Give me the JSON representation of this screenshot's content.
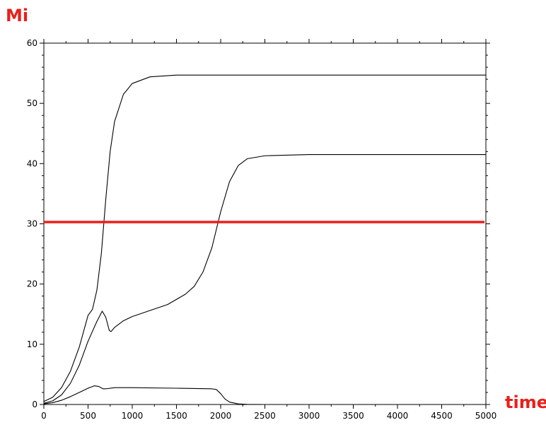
{
  "chart_data": {
    "type": "line",
    "title": "",
    "xlabel": "time",
    "ylabel": "Mi",
    "xlim": [
      0,
      5000
    ],
    "ylim": [
      0,
      60
    ],
    "x_ticks": [
      0,
      500,
      1000,
      1500,
      2000,
      2500,
      3000,
      3500,
      4000,
      4500,
      5000
    ],
    "y_ticks": [
      0,
      10,
      20,
      30,
      40,
      50,
      60
    ],
    "grid": false,
    "legend": "none",
    "threshold": {
      "y": 30.3,
      "color": "#e8201b"
    },
    "series": [
      {
        "color": "#000000",
        "points": [
          [
            0,
            0.5
          ],
          [
            100,
            1.2
          ],
          [
            200,
            2.8
          ],
          [
            300,
            5.5
          ],
          [
            400,
            9.5
          ],
          [
            500,
            14.8
          ],
          [
            550,
            15.8
          ],
          [
            600,
            19
          ],
          [
            650,
            25
          ],
          [
            700,
            34
          ],
          [
            750,
            42
          ],
          [
            800,
            47
          ],
          [
            900,
            51.5
          ],
          [
            1000,
            53.3
          ],
          [
            1200,
            54.4
          ],
          [
            1500,
            54.7
          ],
          [
            2000,
            54.7
          ],
          [
            5000,
            54.7
          ]
        ]
      },
      {
        "color": "#000000",
        "points": [
          [
            0,
            0.2
          ],
          [
            100,
            0.6
          ],
          [
            200,
            1.6
          ],
          [
            300,
            3.5
          ],
          [
            400,
            6.5
          ],
          [
            500,
            10.5
          ],
          [
            600,
            13.8
          ],
          [
            660,
            15.5
          ],
          [
            700,
            14.5
          ],
          [
            740,
            12.3
          ],
          [
            760,
            12.1
          ],
          [
            800,
            12.8
          ],
          [
            900,
            13.9
          ],
          [
            1000,
            14.6
          ],
          [
            1200,
            15.6
          ],
          [
            1400,
            16.6
          ],
          [
            1600,
            18.3
          ],
          [
            1700,
            19.6
          ],
          [
            1800,
            22
          ],
          [
            1900,
            26
          ],
          [
            2000,
            32
          ],
          [
            2100,
            37
          ],
          [
            2200,
            39.7
          ],
          [
            2300,
            40.8
          ],
          [
            2500,
            41.3
          ],
          [
            3000,
            41.5
          ],
          [
            5000,
            41.5
          ]
        ]
      },
      {
        "color": "#000000",
        "points": [
          [
            0,
            0.1
          ],
          [
            100,
            0.3
          ],
          [
            200,
            0.7
          ],
          [
            300,
            1.3
          ],
          [
            400,
            2
          ],
          [
            500,
            2.7
          ],
          [
            570,
            3.1
          ],
          [
            620,
            3
          ],
          [
            670,
            2.6
          ],
          [
            700,
            2.6
          ],
          [
            800,
            2.8
          ],
          [
            1000,
            2.8
          ],
          [
            1500,
            2.7
          ],
          [
            1900,
            2.6
          ],
          [
            1950,
            2.5
          ],
          [
            2000,
            1.8
          ],
          [
            2050,
            0.9
          ],
          [
            2100,
            0.4
          ],
          [
            2200,
            0.1
          ],
          [
            2300,
            0.02
          ],
          [
            2500,
            0
          ],
          [
            5000,
            0
          ]
        ]
      }
    ]
  }
}
